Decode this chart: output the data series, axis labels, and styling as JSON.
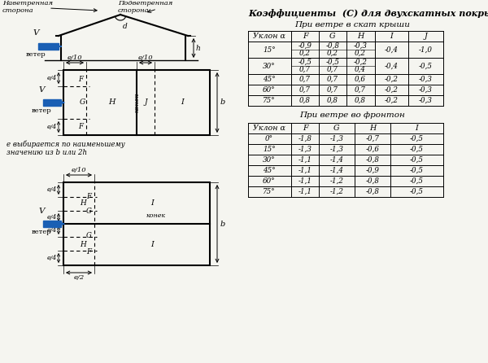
{
  "title_main": "Коэффициенты  (С) для двухскатных покрытий:",
  "subtitle1": "При ветре в скат крыши",
  "subtitle2": "При ветре во фронтон",
  "table1_headers": [
    "Уклон α",
    "F",
    "G",
    "H",
    "I",
    "J"
  ],
  "table1_rows": [
    [
      "15°",
      "-0,9\n0,2",
      "-0,8\n0,2",
      "-0,3\n0,2",
      "-0,4",
      "-1,0"
    ],
    [
      "30°",
      "-0,5\n0,7",
      "-0,5\n0,7",
      "-0,2\n0,4",
      "-0,4",
      "-0,5"
    ],
    [
      "45°",
      "0,7",
      "0,7",
      "0,6",
      "-0,2",
      "-0,3"
    ],
    [
      "60°",
      "0,7",
      "0,7",
      "0,7",
      "-0,2",
      "-0,3"
    ],
    [
      "75°",
      "0,8",
      "0,8",
      "0,8",
      "-0,2",
      "-0,3"
    ]
  ],
  "table2_headers": [
    "Уклон α",
    "F",
    "G",
    "H",
    "I"
  ],
  "table2_rows": [
    [
      "0°",
      "-1,8",
      "-1,3",
      "-0,7",
      "-0,5"
    ],
    [
      "15°",
      "-1,3",
      "-1,3",
      "-0,6",
      "-0,5"
    ],
    [
      "30°",
      "-1,1",
      "-1,4",
      "-0,8",
      "-0,5"
    ],
    [
      "45°",
      "-1,1",
      "-1,4",
      "-0,9",
      "-0,5"
    ],
    [
      "60°",
      "-1,1",
      "-1,2",
      "-0,8",
      "-0,5"
    ],
    [
      "75°",
      "-1,1",
      "-1,2",
      "-0,8",
      "-0,5"
    ]
  ],
  "label_e_text": "e выбирается по наименьшему\nзначению из b или 2h",
  "arrow_color": "#1a5fb4",
  "line_color": "#000000",
  "bg_color": "#f5f5f0",
  "font_size_title": 8.0,
  "font_size_subtitle": 7.5,
  "font_size_table": 6.8,
  "font_size_diagram": 6.5
}
